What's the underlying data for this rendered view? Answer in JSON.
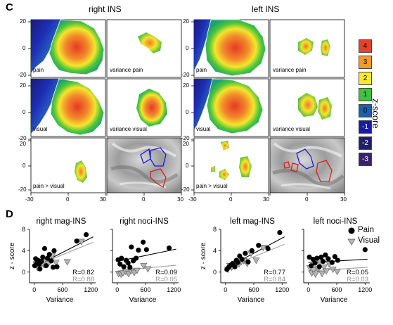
{
  "panel_c": {
    "letter": "C",
    "titles": [
      "right INS",
      "left INS"
    ],
    "y_ticks": [
      "20",
      "0",
      "-20"
    ],
    "x_ticks": [
      "-30",
      "0",
      "30"
    ],
    "map_captions": {
      "r1c1": "pain",
      "r1c2": "variance pain",
      "r1c3": "pain",
      "r1c4": "variance pain",
      "r2c1": "visual",
      "r2c2": "variance visual",
      "r2c3": "visual",
      "r2c4": "variance visual",
      "r3c1": "pain > visual",
      "r3c3": "pain > visual"
    },
    "colorbar": {
      "label": "z-score",
      "levels": [
        {
          "text": "4",
          "color": "#e8402a",
          "text_color": "#000000"
        },
        {
          "text": "3",
          "color": "#f29a2e",
          "text_color": "#000000"
        },
        {
          "text": "2",
          "color": "#f4ea2e",
          "text_color": "#000000"
        },
        {
          "text": "1",
          "color": "#3cc43c",
          "text_color": "#000000"
        },
        {
          "text": "0",
          "color": "#1f5fa6",
          "text_color": "#000000"
        },
        {
          "text": "-1",
          "color": "#1a1aa8",
          "text_color": "#ffffff"
        },
        {
          "text": "-2",
          "color": "#201f6e",
          "text_color": "#ffffff"
        },
        {
          "text": "-3",
          "color": "#3b2070",
          "text_color": "#ffffff"
        }
      ]
    }
  },
  "panel_d": {
    "letter": "D",
    "legend": [
      {
        "label": "Pain"
      },
      {
        "label": "Visual"
      }
    ],
    "ylabel": "z - score",
    "xlabel": "Variance"
  },
  "chart_data": [
    {
      "type": "scatter",
      "title": "right mag-INS",
      "xlabel": "Variance",
      "ylabel": "z - score",
      "xlim": [
        -100,
        1300
      ],
      "ylim": [
        -2,
        8
      ],
      "x_ticks": [
        "0",
        "600",
        "1200"
      ],
      "y_ticks": [
        "8",
        "4",
        "0"
      ],
      "series": [
        {
          "name": "Pain",
          "points": [
            [
              10,
              1.2
            ],
            [
              30,
              2.5
            ],
            [
              60,
              1.8
            ],
            [
              80,
              2.2
            ],
            [
              100,
              1.5
            ],
            [
              120,
              0.6
            ],
            [
              150,
              2.0
            ],
            [
              180,
              2.8
            ],
            [
              220,
              4.4
            ],
            [
              250,
              1.2
            ],
            [
              280,
              2.6
            ],
            [
              320,
              3.3
            ],
            [
              360,
              2.1
            ],
            [
              400,
              0.9
            ],
            [
              420,
              4.0
            ],
            [
              480,
              1.0
            ],
            [
              900,
              5.8
            ],
            [
              1100,
              7.0
            ]
          ],
          "fit": [
            [
              0,
              1.0
            ],
            [
              1250,
              6.6
            ]
          ],
          "r_label": "R=0.82"
        },
        {
          "name": "Visual",
          "points": [
            [
              40,
              1.5
            ],
            [
              70,
              0.8
            ],
            [
              110,
              1.0
            ],
            [
              160,
              1.7
            ],
            [
              200,
              1.4
            ],
            [
              240,
              1.9
            ],
            [
              300,
              1.6
            ],
            [
              340,
              2.2
            ],
            [
              380,
              3.0
            ],
            [
              460,
              1.8
            ],
            [
              700,
              1.9
            ],
            [
              1000,
              5.7
            ]
          ],
          "fit": [
            [
              0,
              1.1
            ],
            [
              1250,
              5.6
            ]
          ],
          "r_label": "R=0.88"
        }
      ]
    },
    {
      "type": "scatter",
      "title": "right noci-INS",
      "xlim": [
        -100,
        1300
      ],
      "ylim": [
        -2,
        8
      ],
      "x_ticks": [
        "0",
        "600",
        "1200"
      ],
      "series": [
        {
          "name": "Pain",
          "points": [
            [
              20,
              2.3
            ],
            [
              60,
              1.5
            ],
            [
              90,
              2.6
            ],
            [
              140,
              1.0
            ],
            [
              190,
              2.2
            ],
            [
              230,
              1.7
            ],
            [
              270,
              0.9
            ],
            [
              300,
              4.7
            ],
            [
              340,
              2.1
            ],
            [
              400,
              2.6
            ],
            [
              450,
              4.1
            ],
            [
              550,
              5.6
            ],
            [
              620,
              4.2
            ],
            [
              1100,
              4.5
            ]
          ],
          "fit": [
            [
              0,
              2.0
            ],
            [
              1250,
              4.3
            ]
          ],
          "r_label": "R=0.09"
        },
        {
          "name": "Visual",
          "points": [
            [
              30,
              -0.3
            ],
            [
              80,
              -0.4
            ],
            [
              120,
              -0.2
            ],
            [
              180,
              0.1
            ],
            [
              240,
              -0.3
            ],
            [
              290,
              0.2
            ],
            [
              360,
              -0.1
            ],
            [
              420,
              0.3
            ],
            [
              560,
              1.2
            ],
            [
              650,
              0.6
            ]
          ],
          "fit": [
            [
              0,
              0.2
            ],
            [
              1250,
              1.3
            ]
          ],
          "r_label": "R=0.05"
        }
      ]
    },
    {
      "type": "scatter",
      "title": "left  mag-INS",
      "xlabel": "Variance",
      "ylabel": "z - score",
      "xlim": [
        -100,
        1300
      ],
      "ylim": [
        -2,
        8
      ],
      "x_ticks": [
        "0",
        "600",
        "1200"
      ],
      "y_ticks": [
        "8",
        "4",
        "0"
      ],
      "series": [
        {
          "name": "Pain",
          "points": [
            [
              30,
              0.5
            ],
            [
              70,
              0.9
            ],
            [
              110,
              1.3
            ],
            [
              150,
              1.6
            ],
            [
              200,
              1.0
            ],
            [
              230,
              2.2
            ],
            [
              260,
              1.8
            ],
            [
              300,
              3.0
            ],
            [
              350,
              2.4
            ],
            [
              420,
              3.5
            ],
            [
              480,
              1.9
            ],
            [
              560,
              4.0
            ],
            [
              700,
              5.0
            ],
            [
              900,
              4.4
            ],
            [
              1150,
              7.4
            ]
          ],
          "fit": [
            [
              0,
              0.7
            ],
            [
              1250,
              6.6
            ]
          ],
          "r_label": "R=0.77"
        },
        {
          "name": "Visual",
          "points": [
            [
              50,
              0.5
            ],
            [
              90,
              1.2
            ],
            [
              130,
              0.9
            ],
            [
              180,
              1.4
            ],
            [
              240,
              1.7
            ],
            [
              290,
              1.5
            ],
            [
              340,
              2.0
            ],
            [
              390,
              2.1
            ],
            [
              460,
              1.6
            ],
            [
              540,
              3.5
            ],
            [
              650,
              2.2
            ],
            [
              800,
              4.6
            ]
          ],
          "fit": [
            [
              0,
              0.7
            ],
            [
              1250,
              5.2
            ]
          ],
          "r_label": "R=0.84"
        }
      ]
    },
    {
      "type": "scatter",
      "title": "left noci-INS",
      "xlim": [
        -100,
        1300
      ],
      "ylim": [
        -2,
        8
      ],
      "x_ticks": [
        "0",
        "600",
        "1200"
      ],
      "series": [
        {
          "name": "Pain",
          "points": [
            [
              20,
              2.8
            ],
            [
              60,
              1.2
            ],
            [
              100,
              2.4
            ],
            [
              140,
              1.7
            ],
            [
              180,
              2.6
            ],
            [
              230,
              1.0
            ],
            [
              270,
              2.8
            ],
            [
              310,
              2.0
            ],
            [
              360,
              3.2
            ],
            [
              420,
              2.5
            ],
            [
              500,
              1.8
            ],
            [
              560,
              2.9
            ],
            [
              620,
              2.2
            ],
            [
              1200,
              4.2
            ]
          ],
          "fit": [
            [
              0,
              1.8
            ],
            [
              1250,
              2.4
            ]
          ],
          "r_label": "R=0.05"
        },
        {
          "name": "Visual",
          "points": [
            [
              30,
              0.8
            ],
            [
              70,
              -0.2
            ],
            [
              110,
              0.4
            ],
            [
              150,
              -0.4
            ],
            [
              200,
              0.6
            ],
            [
              240,
              1.8
            ],
            [
              290,
              -0.3
            ],
            [
              330,
              0.9
            ],
            [
              380,
              0.2
            ],
            [
              440,
              1.5
            ],
            [
              520,
              0.5
            ],
            [
              610,
              0.1
            ]
          ],
          "fit": [
            [
              0,
              0.2
            ],
            [
              1250,
              0.9
            ]
          ],
          "r_label": "R=0.03"
        }
      ]
    }
  ]
}
